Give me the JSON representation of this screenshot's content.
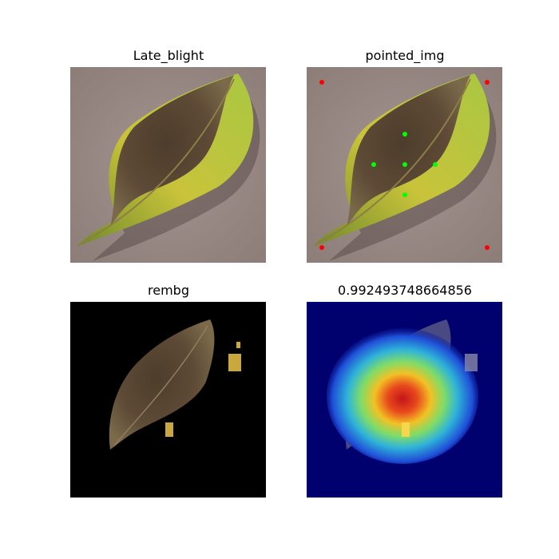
{
  "panels": [
    {
      "title": "Late_blight",
      "image": "leaf-photo"
    },
    {
      "title": "pointed_img",
      "image": "leaf-photo-with-points"
    },
    {
      "title": "rembg",
      "image": "leaf-background-removed"
    },
    {
      "title": "0.992493748664856",
      "image": "leaf-heatmap-overlay"
    }
  ],
  "marker_colors": {
    "corner": "#ff0000",
    "center": "#00ff00"
  },
  "colors": {
    "photo_bg": "#9a8a86",
    "black_bg": "#000000",
    "heatmap_bg": "#00006e"
  }
}
